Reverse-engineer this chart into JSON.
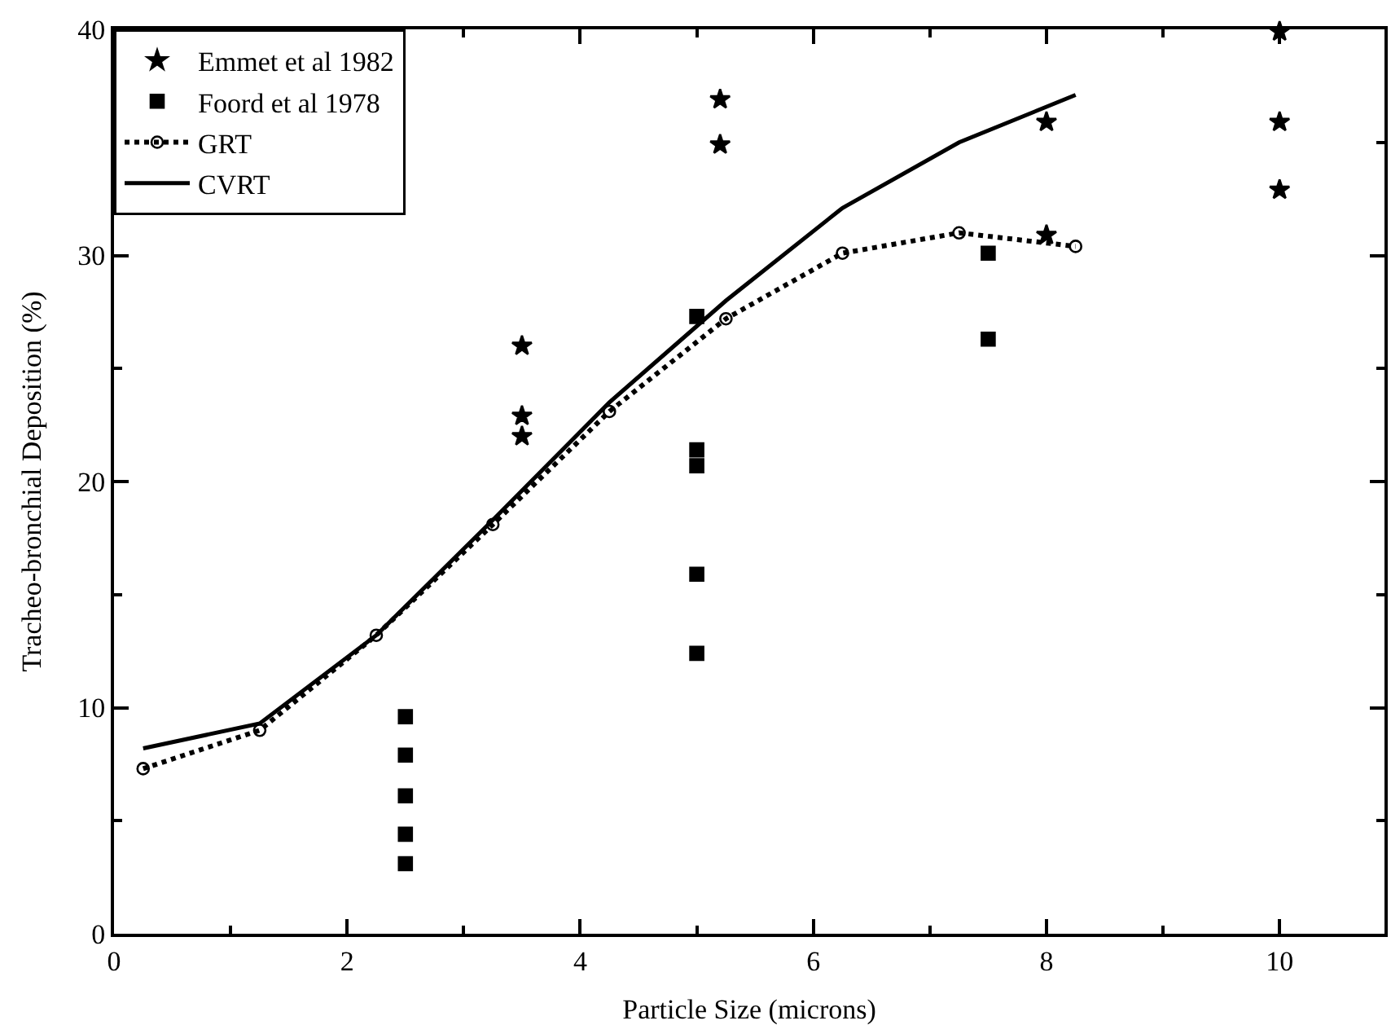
{
  "chart_data": {
    "type": "scatter",
    "xlabel": "Particle Size (microns)",
    "ylabel": "Tracheo-bronchial Deposition (%)",
    "xlim": [
      0,
      10.9
    ],
    "xticks": [
      0,
      2,
      4,
      6,
      8,
      10
    ],
    "ylim": [
      0,
      40
    ],
    "yticks": [
      0,
      10,
      20,
      30,
      40
    ],
    "grid": false,
    "legend": "top left",
    "series": [
      {
        "name": "Emmet et al 1982",
        "marker": "star",
        "color": "#000000",
        "x": [
          3.5,
          3.5,
          3.5,
          5.2,
          5.2,
          8,
          8,
          10,
          10,
          10
        ],
        "values": [
          26,
          22.9,
          22,
          36.9,
          34.9,
          35.9,
          30.9,
          39.9,
          35.9,
          32.9
        ]
      },
      {
        "name": "Foord et al 1978",
        "marker": "square",
        "color": "#000000",
        "x": [
          2.5,
          2.5,
          2.5,
          2.5,
          2.5,
          5,
          5,
          5,
          5,
          5,
          7.5,
          7.5
        ],
        "values": [
          9.6,
          7.9,
          6.1,
          4.4,
          3.1,
          27.3,
          21.4,
          20.7,
          15.9,
          12.4,
          30.1,
          26.3
        ]
      },
      {
        "name": "GRT",
        "type": "line",
        "marker": "circle",
        "line_style": "dotted",
        "color": "#000000",
        "x": [
          0.25,
          1.25,
          2.25,
          3.25,
          4.25,
          5.25,
          6.25,
          7.25,
          8.25
        ],
        "values": [
          7.3,
          9,
          13.2,
          18.1,
          23.1,
          27.2,
          30.1,
          31,
          30.4
        ]
      },
      {
        "name": "CVRT",
        "type": "line",
        "marker": "none",
        "line_style": "solid",
        "color": "#000000",
        "x": [
          0.25,
          1.25,
          2.25,
          3.25,
          4.25,
          5.25,
          6.25,
          7.25,
          8.25
        ],
        "values": [
          8.2,
          9.3,
          13.2,
          18.3,
          23.5,
          28,
          32.1,
          35,
          37.1
        ]
      }
    ]
  }
}
